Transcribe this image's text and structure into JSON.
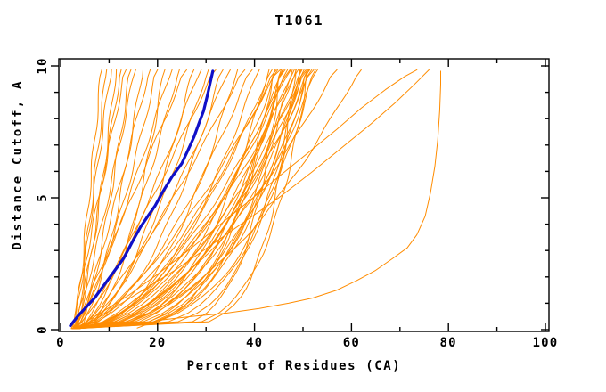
{
  "title": "T1061",
  "colors": {
    "background": "#ffffff",
    "axis": "#000000",
    "text": "#000000",
    "models": "#ff8c00",
    "highlight": "#1010c8"
  },
  "chart_data": {
    "type": "line",
    "title": "T1061",
    "xlabel": "Percent of Residues (CA)",
    "ylabel": "Distance Cutoff, A",
    "xlim": [
      0,
      100
    ],
    "ylim": [
      0,
      10
    ],
    "x_major_ticks": [
      0,
      20,
      40,
      60,
      80,
      100
    ],
    "x_minor_ticks": [
      10,
      30,
      50,
      70,
      90
    ],
    "y_major_ticks": [
      0,
      5,
      10
    ],
    "y_minor_ticks": [
      1,
      2,
      3,
      4,
      6,
      7,
      8,
      9
    ],
    "grid": false,
    "legend_position": "none",
    "frame": "box",
    "series": [
      {
        "name": "predicted-model-curves",
        "color": "#ff8c00",
        "stroke_width": 1,
        "type": "power_curves",
        "formula": "x(y) = x0 + (xtop - x0) * (y/10)^p, y from 0 to 9.85",
        "params": [
          [
            3.0,
            8.5,
            0.95
          ],
          [
            2.5,
            9.5,
            0.8
          ],
          [
            3.5,
            10.5,
            1.1
          ],
          [
            2.8,
            11.5,
            0.7
          ],
          [
            3.2,
            12.5,
            0.9
          ],
          [
            2.2,
            13.5,
            1.0
          ],
          [
            4.0,
            14.5,
            0.75
          ],
          [
            2.6,
            15.5,
            0.85
          ],
          [
            3.0,
            17,
            0.6
          ],
          [
            3.4,
            18.5,
            0.9
          ],
          [
            2.4,
            20,
            0.7
          ],
          [
            3.8,
            21.5,
            0.5
          ],
          [
            2.9,
            23,
            0.85
          ],
          [
            3.3,
            24.5,
            0.65
          ],
          [
            2.5,
            26,
            0.95
          ],
          [
            3.6,
            27.5,
            0.55
          ],
          [
            2.7,
            29,
            0.75
          ],
          [
            3.1,
            30.5,
            0.6
          ],
          [
            3.9,
            32,
            0.9
          ],
          [
            2.3,
            33.5,
            0.5
          ],
          [
            3.5,
            35,
            0.7
          ],
          [
            2.8,
            36.5,
            0.45
          ],
          [
            3.2,
            38,
            0.8
          ],
          [
            2.6,
            39.5,
            0.6
          ],
          [
            3.7,
            41,
            0.5
          ],
          [
            3.0,
            43,
            0.35
          ],
          [
            3.4,
            43.6,
            0.55
          ],
          [
            2.5,
            44.2,
            0.25
          ],
          [
            2.2,
            44.5,
            0.6
          ],
          [
            3.8,
            44.8,
            0.45
          ],
          [
            2.9,
            45.3,
            0.7
          ],
          [
            3.3,
            45.8,
            0.3
          ],
          [
            3.9,
            46.0,
            0.35
          ],
          [
            2.6,
            46.3,
            0.5
          ],
          [
            3.1,
            46.8,
            0.4
          ],
          [
            3.6,
            47.3,
            0.6
          ],
          [
            2.7,
            47.5,
            0.55
          ],
          [
            2.4,
            47.8,
            0.28
          ],
          [
            3.2,
            48.2,
            0.48
          ],
          [
            2.8,
            48.6,
            0.38
          ],
          [
            3.5,
            49.0,
            0.58
          ],
          [
            2.7,
            49.4,
            0.22
          ],
          [
            3.4,
            49.6,
            0.3
          ],
          [
            3.0,
            49.8,
            0.45
          ],
          [
            3.3,
            50.2,
            0.33
          ],
          [
            2.5,
            50.6,
            0.52
          ],
          [
            2.9,
            50.9,
            0.47
          ],
          [
            3.7,
            51.0,
            0.27
          ],
          [
            2.9,
            51.4,
            0.42
          ],
          [
            3.1,
            51.8,
            0.36
          ],
          [
            3.4,
            52.2,
            0.5
          ],
          [
            2.6,
            52.6,
            0.3
          ],
          [
            3.2,
            53.0,
            0.4
          ],
          [
            2.5,
            45.5,
            0.16
          ],
          [
            3.0,
            48.5,
            0.14
          ],
          [
            3.5,
            51.2,
            0.18
          ],
          [
            3.0,
            57,
            0.55
          ],
          [
            3.3,
            62,
            0.5
          ]
        ]
      },
      {
        "name": "outlier-model-curves",
        "color": "#ff8c00",
        "stroke_width": 1,
        "type": "polylines",
        "curves": [
          [
            [
              3.5,
              0.1
            ],
            [
              8,
              0.6
            ],
            [
              14,
              1.3
            ],
            [
              20,
              2.1
            ],
            [
              27,
              3.1
            ],
            [
              33,
              4.0
            ],
            [
              39,
              4.9
            ],
            [
              45,
              5.8
            ],
            [
              51,
              6.7
            ],
            [
              57,
              7.6
            ],
            [
              62,
              8.4
            ],
            [
              67,
              9.1
            ],
            [
              71,
              9.6
            ],
            [
              73.5,
              9.85
            ]
          ],
          [
            [
              4,
              0.1
            ],
            [
              10,
              0.7
            ],
            [
              17,
              1.5
            ],
            [
              24,
              2.3
            ],
            [
              31,
              3.2
            ],
            [
              38,
              4.1
            ],
            [
              45,
              5.0
            ],
            [
              52,
              6.0
            ],
            [
              58,
              6.9
            ],
            [
              64,
              7.8
            ],
            [
              69,
              8.6
            ],
            [
              73,
              9.3
            ],
            [
              76,
              9.85
            ]
          ],
          [
            [
              15.8,
              0.06
            ],
            [
              20,
              0.35
            ],
            [
              27,
              0.5
            ],
            [
              34,
              0.62
            ],
            [
              41,
              0.8
            ],
            [
              47,
              1.0
            ],
            [
              52,
              1.2
            ],
            [
              57,
              1.5
            ],
            [
              61,
              1.85
            ],
            [
              65,
              2.25
            ],
            [
              68.5,
              2.7
            ],
            [
              71.5,
              3.1
            ],
            [
              73.5,
              3.6
            ],
            [
              75.2,
              4.3
            ],
            [
              76.3,
              5.2
            ],
            [
              77.2,
              6.2
            ],
            [
              77.8,
              7.2
            ],
            [
              78.2,
              8.3
            ],
            [
              78.4,
              9.3
            ],
            [
              78.4,
              9.8
            ]
          ]
        ]
      },
      {
        "name": "highlighted-model-curve",
        "color": "#1010c8",
        "stroke_width": 3.2,
        "type": "polyline",
        "points": [
          [
            2,
            0.15
          ],
          [
            3.5,
            0.5
          ],
          [
            5.5,
            0.9
          ],
          [
            7,
            1.2
          ],
          [
            9,
            1.7
          ],
          [
            11,
            2.2
          ],
          [
            13,
            2.7
          ],
          [
            15,
            3.4
          ],
          [
            16.5,
            3.9
          ],
          [
            18,
            4.3
          ],
          [
            19.5,
            4.7
          ],
          [
            21,
            5.2
          ],
          [
            23,
            5.8
          ],
          [
            25,
            6.3
          ],
          [
            26.5,
            6.9
          ],
          [
            27.5,
            7.3
          ],
          [
            28.5,
            7.8
          ],
          [
            29.5,
            8.3
          ],
          [
            30.3,
            8.9
          ],
          [
            30.9,
            9.4
          ],
          [
            31.4,
            9.8
          ]
        ]
      }
    ]
  }
}
